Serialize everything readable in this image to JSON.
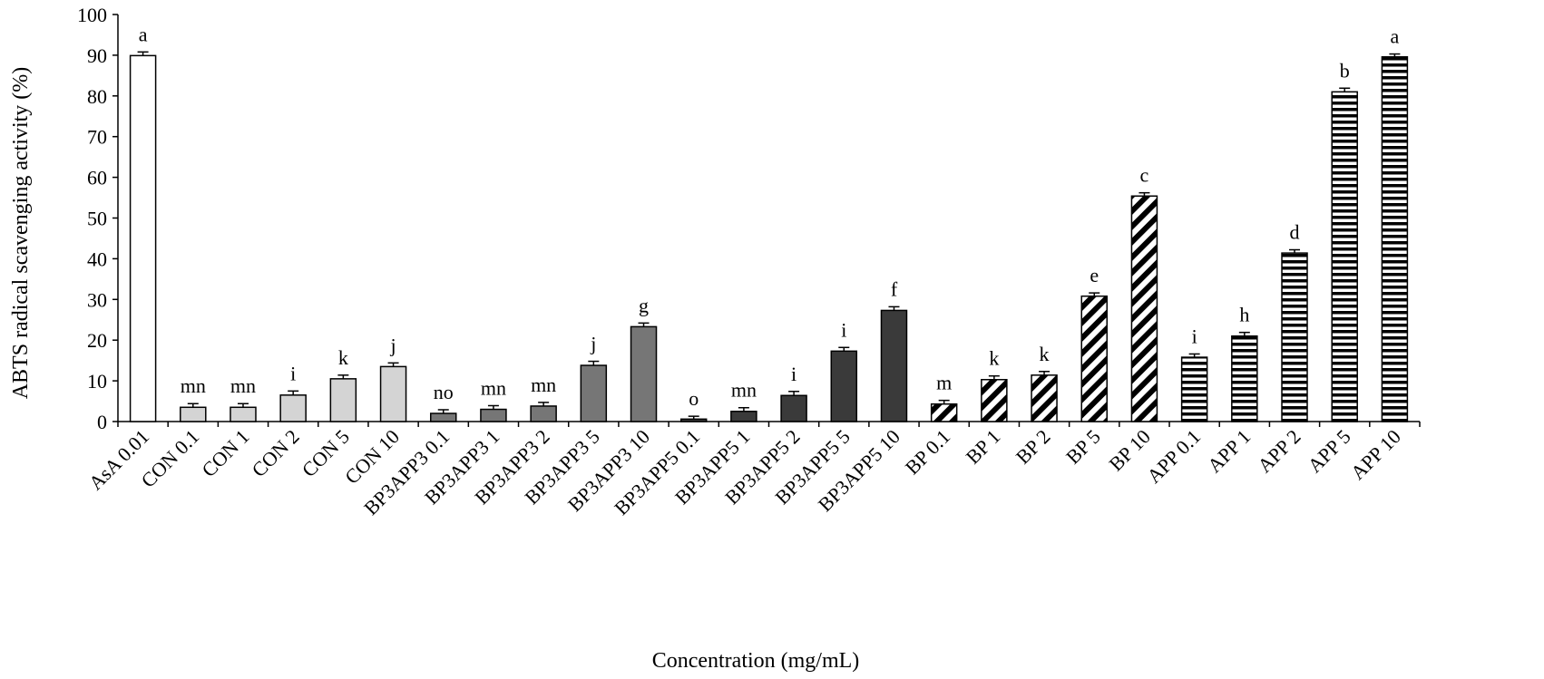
{
  "chart_data": {
    "type": "bar",
    "title": "",
    "xlabel": "Concentration (mg/mL)",
    "ylabel": "ABTS radical scavenging activity (%)",
    "ylim": [
      0,
      100
    ],
    "yticks": [
      0,
      10,
      20,
      30,
      40,
      50,
      60,
      70,
      80,
      90,
      100
    ],
    "grid": false,
    "categories": [
      "AsA 0.01",
      "CON 0.1",
      "CON 1",
      "CON 2",
      "CON 5",
      "CON 10",
      "BP3APP3 0.1",
      "BP3APP3 1",
      "BP3APP3 2",
      "BP3APP3 5",
      "BP3APP3 10",
      "BP3APP5 0.1",
      "BP3APP5 1",
      "BP3APP5 2",
      "BP3APP5 5",
      "BP3APP5 10",
      "BP 0.1",
      "BP 1",
      "BP 2",
      "BP 5",
      "BP 10",
      "APP 0.1",
      "APP 1",
      "APP 2",
      "APP 5",
      "APP 10"
    ],
    "values": [
      89.9,
      3.5,
      3.5,
      6.5,
      10.5,
      13.5,
      2.0,
      3.0,
      3.8,
      13.8,
      23.3,
      0.6,
      2.5,
      6.4,
      17.3,
      27.3,
      4.3,
      10.3,
      11.4,
      30.8,
      55.4,
      15.8,
      21.0,
      41.4,
      81.0,
      89.6
    ],
    "errors": [
      0.9,
      0.9,
      0.9,
      1.0,
      0.9,
      0.9,
      0.9,
      0.9,
      0.9,
      1.0,
      0.9,
      0.7,
      0.9,
      1.0,
      0.9,
      0.9,
      0.9,
      0.9,
      0.9,
      0.8,
      0.8,
      0.8,
      0.9,
      0.8,
      0.9,
      0.7
    ],
    "letters": [
      "a",
      "mn",
      "mn",
      "i",
      "k",
      "j",
      "no",
      "mn",
      "mn",
      "j",
      "g",
      "o",
      "mn",
      "i",
      "i",
      "f",
      "m",
      "k",
      "k",
      "e",
      "c",
      "i",
      "h",
      "d",
      "b",
      "a"
    ],
    "groups": [
      {
        "name": "AsA",
        "fill": "#ffffff",
        "pattern": "none"
      },
      {
        "name": "CON",
        "fill": "#d4d4d4",
        "pattern": "none"
      },
      {
        "name": "BP3APP3",
        "fill": "#767676",
        "pattern": "none"
      },
      {
        "name": "BP3APP5",
        "fill": "#3a3a3a",
        "pattern": "none"
      },
      {
        "name": "BP",
        "fill": "#ffffff",
        "pattern": "diagonal-stripes"
      },
      {
        "name": "APP",
        "fill": "#ffffff",
        "pattern": "horizontal-stripes"
      }
    ],
    "group_index": [
      0,
      1,
      1,
      1,
      1,
      1,
      2,
      2,
      2,
      2,
      2,
      3,
      3,
      3,
      3,
      3,
      4,
      4,
      4,
      4,
      4,
      5,
      5,
      5,
      5,
      5
    ]
  }
}
